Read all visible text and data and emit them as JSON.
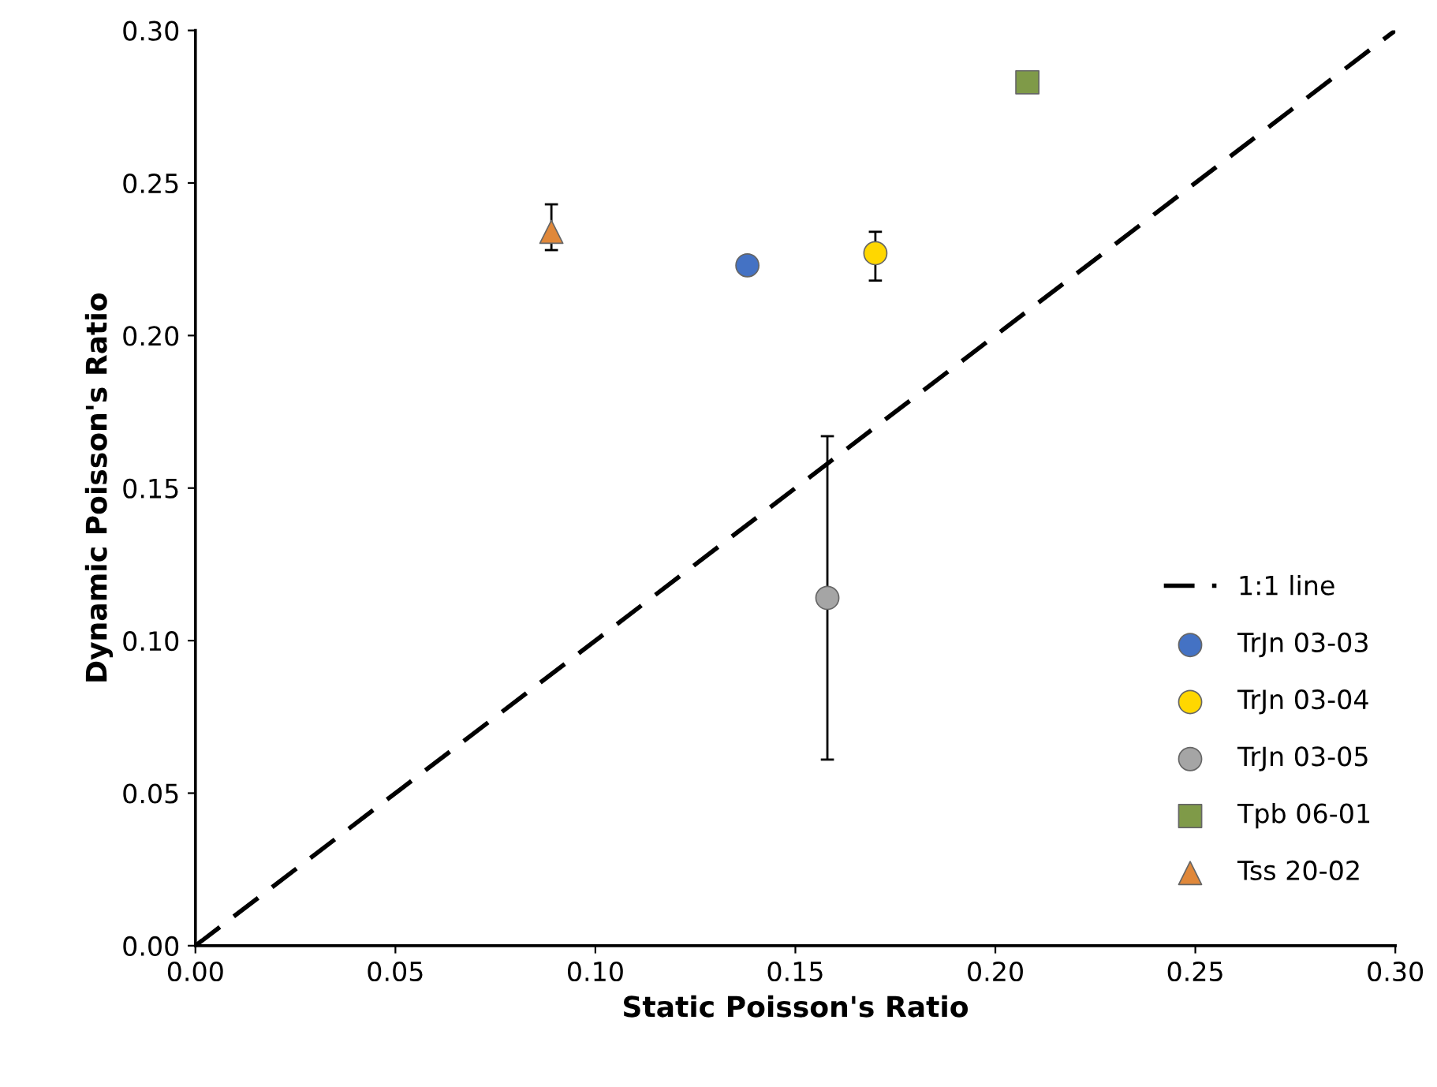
{
  "chart_data": {
    "type": "scatter",
    "xlabel": "Static Poisson's Ratio",
    "ylabel": "Dynamic Poisson's Ratio",
    "xlim": [
      0,
      0.3
    ],
    "ylim": [
      0,
      0.3
    ],
    "xticks": [
      {
        "value": 0,
        "label": "0.00"
      },
      {
        "value": 0.05,
        "label": "0.05"
      },
      {
        "value": 0.1,
        "label": "0.10"
      },
      {
        "value": 0.15,
        "label": "0.15"
      },
      {
        "value": 0.2,
        "label": "0.20"
      },
      {
        "value": 0.25,
        "label": "0.25"
      },
      {
        "value": 0.3,
        "label": "0.30"
      }
    ],
    "yticks": [
      {
        "value": 0,
        "label": "0.00"
      },
      {
        "value": 0.05,
        "label": "0.05"
      },
      {
        "value": 0.1,
        "label": "0.10"
      },
      {
        "value": 0.15,
        "label": "0.15"
      },
      {
        "value": 0.2,
        "label": "0.20"
      },
      {
        "value": 0.25,
        "label": "0.25"
      },
      {
        "value": 0.3,
        "label": "0.30"
      }
    ],
    "grid": false,
    "legend": "bottom right",
    "series": [
      {
        "name": "1:1 line",
        "type": "line",
        "color": "#000000",
        "line_style": "dashed",
        "marker": "none",
        "x": [
          0,
          0.3
        ],
        "values": [
          0,
          0.3
        ]
      },
      {
        "name": "TrJn 03-03",
        "color": "#4472c4",
        "marker": "circle",
        "x": [
          0.138
        ],
        "values": [
          0.223
        ]
      },
      {
        "name": "TrJn 03-04",
        "color": "#ffd700",
        "marker": "circle",
        "x": [
          0.17
        ],
        "values": [
          0.227
        ],
        "errors": [
          [
            0.218,
            0.234
          ]
        ]
      },
      {
        "name": "TrJn 03-05",
        "color": "#a5a5a5",
        "marker": "circle",
        "x": [
          0.158
        ],
        "values": [
          0.114
        ],
        "errors": [
          [
            0.061,
            0.167
          ]
        ]
      },
      {
        "name": "Tpb 06-01",
        "color": "#7f9a48",
        "marker": "square",
        "x": [
          0.208
        ],
        "values": [
          0.283
        ]
      },
      {
        "name": "Tss 20-02",
        "color": "#e0883a",
        "marker": "triangle",
        "x": [
          0.089
        ],
        "values": [
          0.234
        ],
        "errors": [
          [
            0.228,
            0.243
          ]
        ]
      }
    ]
  }
}
